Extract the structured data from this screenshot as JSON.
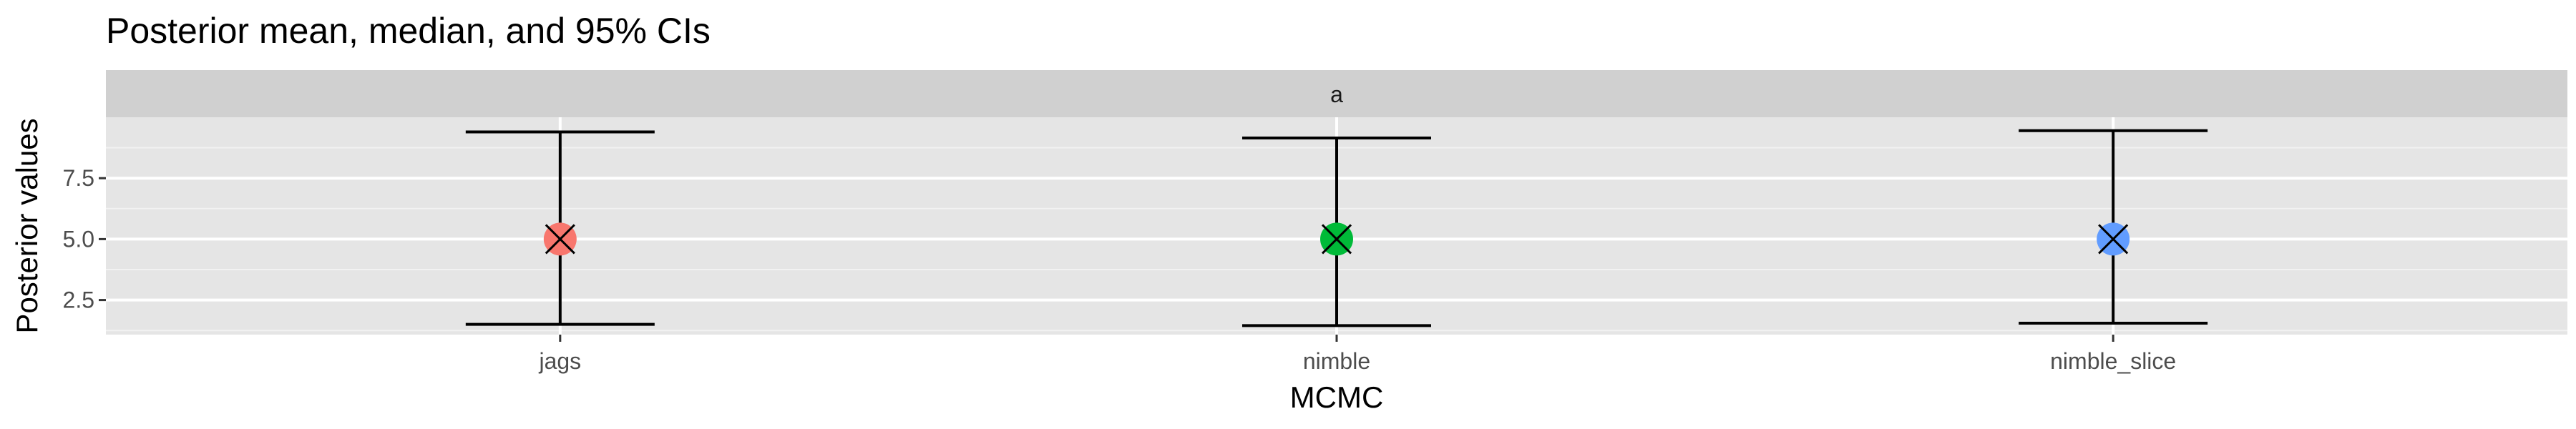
{
  "chart_data": {
    "type": "errorbar",
    "title": "Posterior mean, median, and 95% CIs",
    "facet_label": "a",
    "xlabel": "MCMC",
    "ylabel": "Posterior values",
    "categories": [
      "jags",
      "nimble",
      "nimble_slice"
    ],
    "mean": [
      5.0,
      5.0,
      5.0
    ],
    "median": [
      5.0,
      5.0,
      5.0
    ],
    "ci_lower": [
      1.5,
      1.45,
      1.55
    ],
    "ci_upper": [
      9.4,
      9.15,
      9.45
    ],
    "y_ticks": [
      2.5,
      5.0,
      7.5
    ],
    "y_tick_labels": [
      "2.5",
      "5.0",
      "7.5"
    ],
    "ylim": [
      1.08,
      10.0
    ],
    "grid": true,
    "colors": {
      "jags": "#f8766d",
      "nimble": "#00ba38",
      "nimble_slice": "#619cff"
    },
    "panel_bg": "#e5e5e5",
    "strip_bg": "#d0d0d0",
    "median_marker": "x-mark"
  }
}
